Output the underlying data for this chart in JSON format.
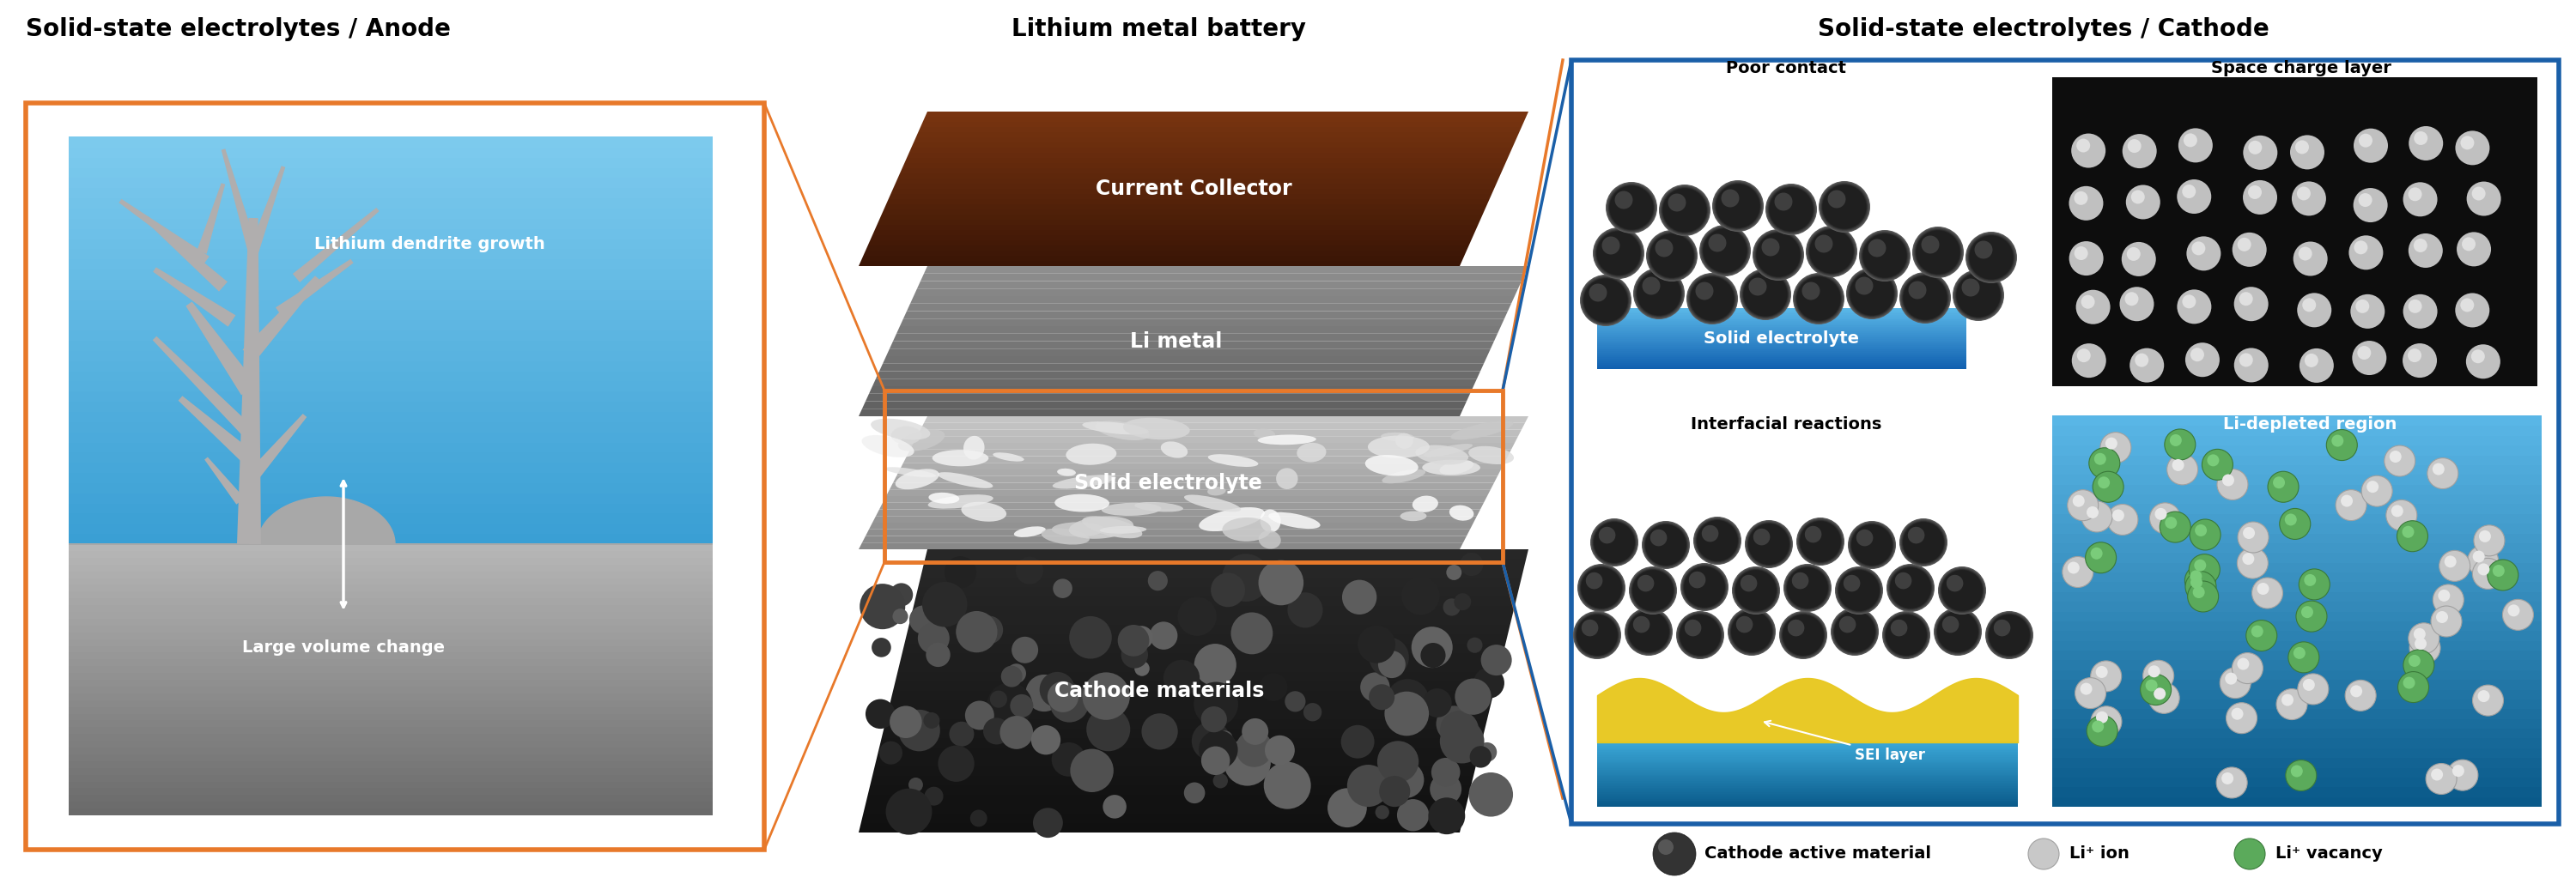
{
  "title_anode": "Solid-state electrolytes / Anode",
  "title_battery": "Lithium metal battery",
  "title_cathode": "Solid-state electrolytes / Cathode",
  "label_dendrite": "Lithium dendrite growth",
  "label_volume": "Large volume change",
  "label_current": "Current Collector",
  "label_limetal": "Li metal",
  "label_solid_elec": "Solid electrolyte",
  "label_cathode_mat": "Cathode materials",
  "label_poor_contact": "Poor contact",
  "label_solid_electrolyte_box": "Solid electrolyte",
  "label_space_charge": "Space charge layer",
  "label_interfacial": "Interfacial reactions",
  "label_sei": "SEI layer",
  "label_li_depleted": "Li-depleted region",
  "legend_cathode_active": "Cathode active material",
  "legend_li_ion": "Li⁺ ion",
  "legend_li_vacancy": "Li⁺ vacancy",
  "orange_color": "#E8792A",
  "blue_border_color": "#1a5fa8",
  "background": "#FFFFFF"
}
